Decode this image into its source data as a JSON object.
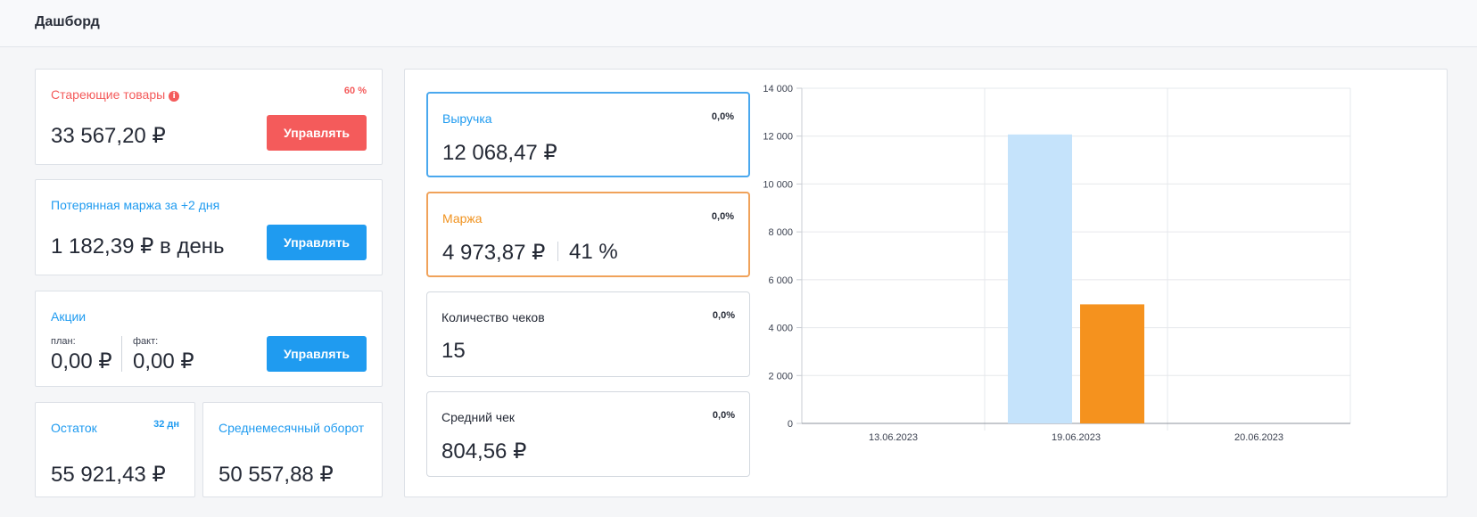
{
  "header": {
    "title": "Дашборд"
  },
  "aging_goods": {
    "title": "Стареющие товары",
    "info_icon": "info-icon",
    "percent": "60 %",
    "value": "33 567,20 ₽",
    "button": "Управлять",
    "color": "#f45b5b"
  },
  "lost_margin": {
    "title": "Потерянная маржа за +2 дня",
    "value": "1 182,39 ₽ в день",
    "button": "Управлять"
  },
  "promotions": {
    "title": "Акции",
    "plan_label": "план:",
    "plan_value": "0,00 ₽",
    "fact_label": "факт:",
    "fact_value": "0,00 ₽",
    "button": "Управлять"
  },
  "stock": {
    "title": "Остаток",
    "days": "32 дн",
    "value": "55 921,43 ₽"
  },
  "monthly_turnover": {
    "title": "Среднемесячный оборот",
    "value": "50 557,88 ₽"
  },
  "metrics": [
    {
      "label": "Выручка",
      "percent": "0,0%",
      "value": "12 068,47 ₽"
    },
    {
      "label": "Маржа",
      "percent": "0,0%",
      "value": "4 973,87 ₽",
      "extra": "41 %"
    },
    {
      "label": "Количество чеков",
      "percent": "0,0%",
      "value": "15"
    },
    {
      "label": "Средний чек",
      "percent": "0,0%",
      "value": "804,56 ₽"
    }
  ],
  "colors": {
    "accent_blue": "#1f9bf0",
    "alert_red": "#f45b5b",
    "margin_orange": "#f0921e",
    "revenue_bar": "#c5e3fb"
  },
  "chart_data": {
    "type": "bar",
    "categories": [
      "13.06.2023",
      "19.06.2023",
      "20.06.2023"
    ],
    "series": [
      {
        "values": [
          0,
          12068.47,
          0
        ],
        "color": "#c5e3fb"
      },
      {
        "values": [
          0,
          4973.87,
          0
        ],
        "color": "#f5921e"
      }
    ],
    "ylim": [
      0,
      14000
    ],
    "yticks": [
      0,
      2000,
      4000,
      6000,
      8000,
      10000,
      12000,
      14000
    ],
    "ytick_labels": [
      "0",
      "2 000",
      "4 000",
      "6 000",
      "8 000",
      "10 000",
      "12 000",
      "14 000"
    ],
    "grid": true
  }
}
